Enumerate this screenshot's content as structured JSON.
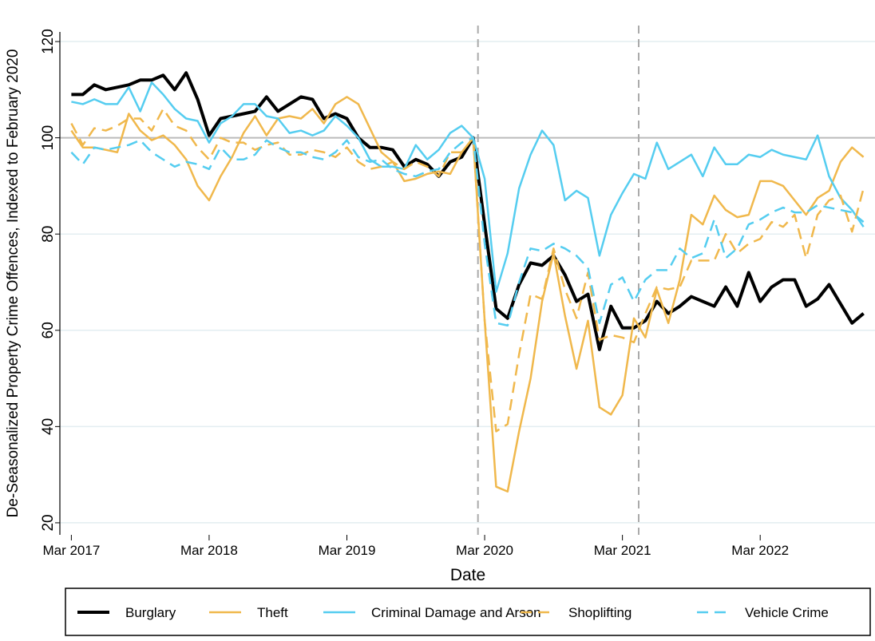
{
  "chart_data": {
    "type": "line",
    "ylabel": "De-Seasonalized Property Crime Offences, Indexed to February 2020",
    "xlabel": "Date",
    "x": [
      "2017-03",
      "2017-04",
      "2017-05",
      "2017-06",
      "2017-07",
      "2017-08",
      "2017-09",
      "2017-10",
      "2017-11",
      "2017-12",
      "2018-01",
      "2018-02",
      "2018-03",
      "2018-04",
      "2018-05",
      "2018-06",
      "2018-07",
      "2018-08",
      "2018-09",
      "2018-10",
      "2018-11",
      "2018-12",
      "2019-01",
      "2019-02",
      "2019-03",
      "2019-04",
      "2019-05",
      "2019-06",
      "2019-07",
      "2019-08",
      "2019-09",
      "2019-10",
      "2019-11",
      "2019-12",
      "2020-01",
      "2020-02",
      "2020-03",
      "2020-04",
      "2020-05",
      "2020-06",
      "2020-07",
      "2020-08",
      "2020-09",
      "2020-10",
      "2020-11",
      "2020-12",
      "2021-01",
      "2021-02",
      "2021-03",
      "2021-04",
      "2021-05",
      "2021-06",
      "2021-07",
      "2021-08",
      "2021-09",
      "2021-10",
      "2021-11",
      "2021-12",
      "2022-01",
      "2022-02",
      "2022-03",
      "2022-04",
      "2022-05",
      "2022-06",
      "2022-07",
      "2022-08",
      "2022-09",
      "2022-10",
      "2022-11",
      "2022-12"
    ],
    "series": [
      {
        "name": "Burglary",
        "color": "#000000",
        "width": 4,
        "dash": false,
        "values": [
          109,
          109,
          111,
          110,
          110.5,
          111,
          112,
          112,
          113,
          110,
          113.5,
          108,
          100.5,
          104,
          104.5,
          105,
          105.5,
          108.5,
          105.5,
          107,
          108.5,
          108,
          104,
          105,
          104,
          100,
          98,
          98,
          97.5,
          94,
          95.5,
          94.5,
          92,
          95,
          96,
          100,
          82,
          64.5,
          62.5,
          69.5,
          74,
          73.5,
          75.5,
          71.5,
          66,
          67.5,
          56,
          65,
          60.5,
          60.5,
          62,
          66,
          63.5,
          65,
          67,
          66,
          65,
          69,
          65,
          72,
          66,
          69,
          70.5,
          70.5,
          65,
          66.5,
          69.5,
          65.5,
          61.5,
          63.5
        ]
      },
      {
        "name": "Theft",
        "color": "#f0b84c",
        "width": 2.5,
        "dash": false,
        "values": [
          101.5,
          98,
          98,
          97.5,
          97,
          105,
          101.5,
          99.5,
          100.5,
          98.5,
          95.5,
          90,
          87,
          92,
          96,
          101,
          104.5,
          100.5,
          104,
          104.5,
          104,
          106,
          103,
          107,
          108.5,
          107,
          102,
          97,
          95,
          91,
          91.5,
          92.5,
          93,
          92.5,
          97,
          100,
          62,
          27.5,
          26.5,
          39,
          50,
          66,
          76,
          63,
          52,
          62,
          44,
          42.5,
          46.5,
          62.5,
          58.5,
          68.5,
          61.5,
          70.5,
          84,
          82,
          88,
          85,
          83.5,
          84,
          91,
          91,
          90,
          87,
          84,
          87.5,
          89,
          95,
          98,
          96
        ]
      },
      {
        "name": "Criminal Damage and Arson",
        "color": "#55cdf0",
        "width": 2.5,
        "dash": false,
        "values": [
          107.5,
          107,
          108,
          107,
          107,
          110.5,
          105.5,
          111.5,
          109,
          106,
          104,
          103.5,
          99,
          103,
          104.5,
          107,
          107,
          104.5,
          104,
          101,
          101.5,
          100.5,
          101.5,
          104.5,
          102.5,
          100,
          95.5,
          94,
          94,
          93.5,
          98.5,
          95.5,
          97.5,
          101,
          102.5,
          100,
          91.5,
          68,
          76,
          89.5,
          96.5,
          101.5,
          98.5,
          87,
          89,
          87.5,
          75.5,
          84,
          88.5,
          92.5,
          91.5,
          99,
          93.5,
          95,
          96.5,
          92,
          98,
          94.5,
          94.5,
          96.5,
          96,
          97.5,
          96.5,
          96,
          95.5,
          100.5,
          92,
          87.5,
          85,
          81.5
        ]
      },
      {
        "name": "Shoplifting",
        "color": "#f0b84c",
        "width": 2.5,
        "dash": true,
        "values": [
          103,
          98.5,
          102,
          101.5,
          102.5,
          104,
          104,
          101.5,
          106,
          102.5,
          101.5,
          98,
          95.5,
          100,
          99,
          99,
          97.5,
          98.5,
          99,
          96.5,
          96.5,
          97.5,
          97,
          96,
          98,
          95,
          93.5,
          94,
          95,
          93.5,
          95,
          94,
          92,
          97,
          97,
          100,
          62,
          39,
          40.5,
          55,
          67.5,
          66.5,
          77,
          68.5,
          62.5,
          72,
          58,
          59,
          58.5,
          57.5,
          63.5,
          69,
          68.5,
          69,
          74.5,
          74.5,
          74.5,
          80,
          76,
          78,
          79,
          82.5,
          81.5,
          84,
          75,
          84,
          87,
          88,
          80.5,
          89.5
        ]
      },
      {
        "name": "Vehicle Crime",
        "color": "#55cdf0",
        "width": 2.5,
        "dash": true,
        "values": [
          97,
          94.5,
          98,
          97.5,
          98,
          98.5,
          99.5,
          97,
          95.5,
          94,
          95,
          94.5,
          93.5,
          98,
          95.5,
          95.5,
          96.5,
          99.5,
          98,
          97,
          97,
          96,
          95.5,
          97,
          99.5,
          96,
          95,
          95.5,
          93.5,
          92.5,
          92,
          93,
          93.5,
          97,
          99,
          100,
          78,
          61.5,
          61,
          70,
          77,
          76.5,
          78,
          77,
          75.5,
          73,
          61.5,
          69.5,
          71,
          66,
          70.5,
          72.5,
          72.5,
          77,
          75,
          76,
          83,
          75,
          77,
          82,
          83,
          84.5,
          85.5,
          84.5,
          84.5,
          86,
          85.5,
          85,
          84.5,
          82.5
        ]
      }
    ],
    "xlim": [
      "2017-02",
      "2023-01"
    ],
    "xticks": [
      {
        "value": "2017-03",
        "label": "Mar 2017"
      },
      {
        "value": "2018-03",
        "label": "Mar 2018"
      },
      {
        "value": "2019-03",
        "label": "Mar 2019"
      },
      {
        "value": "2020-03",
        "label": "Mar 2020"
      },
      {
        "value": "2021-03",
        "label": "Mar 2021"
      },
      {
        "value": "2022-03",
        "label": "Mar 2022"
      }
    ],
    "ylim": [
      17.5,
      122
    ],
    "yticks": [
      20,
      40,
      60,
      80,
      100,
      120
    ],
    "grid": true,
    "hline": 100,
    "vlines": [
      "2020-02",
      "2021-04"
    ],
    "legend": "bottom"
  }
}
